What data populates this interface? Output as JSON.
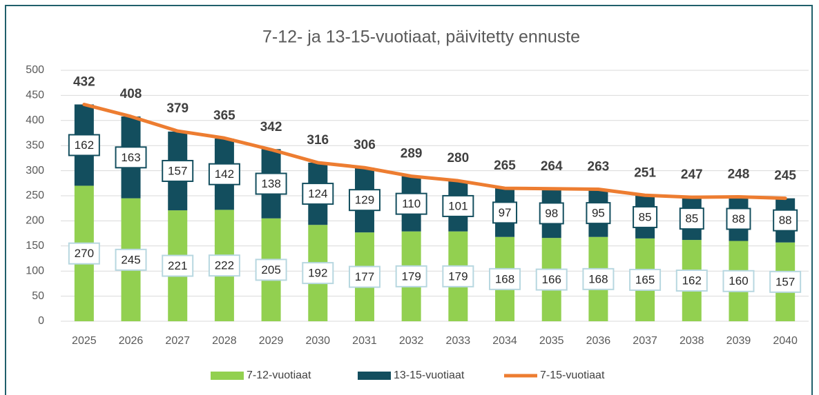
{
  "chart_data": {
    "type": "bar",
    "title": "7-12- ja 13-15-vuotiaat, päivitetty ennuste",
    "categories": [
      "2025",
      "2026",
      "2027",
      "2028",
      "2029",
      "2030",
      "2031",
      "2032",
      "2033",
      "2034",
      "2035",
      "2036",
      "2037",
      "2038",
      "2039",
      "2040"
    ],
    "series": [
      {
        "name": "7-12-vuotiaat",
        "color": "#92d050",
        "values": [
          270,
          245,
          221,
          222,
          205,
          192,
          177,
          179,
          179,
          168,
          166,
          168,
          165,
          162,
          160,
          157
        ]
      },
      {
        "name": "13-15-vuotiaat",
        "color": "#134e5e",
        "values": [
          162,
          163,
          157,
          142,
          138,
          124,
          129,
          110,
          101,
          97,
          98,
          95,
          85,
          85,
          88,
          88
        ]
      },
      {
        "name": "7-15-vuotiaat",
        "color": "#ed7d31",
        "type": "line",
        "values": [
          432,
          408,
          379,
          365,
          342,
          316,
          306,
          289,
          280,
          265,
          264,
          263,
          251,
          247,
          248,
          245
        ]
      }
    ],
    "ylim": [
      0,
      500
    ],
    "yticks": [
      0,
      50,
      100,
      150,
      200,
      250,
      300,
      350,
      400,
      450,
      500
    ],
    "grid": true,
    "legend": "bottom"
  }
}
